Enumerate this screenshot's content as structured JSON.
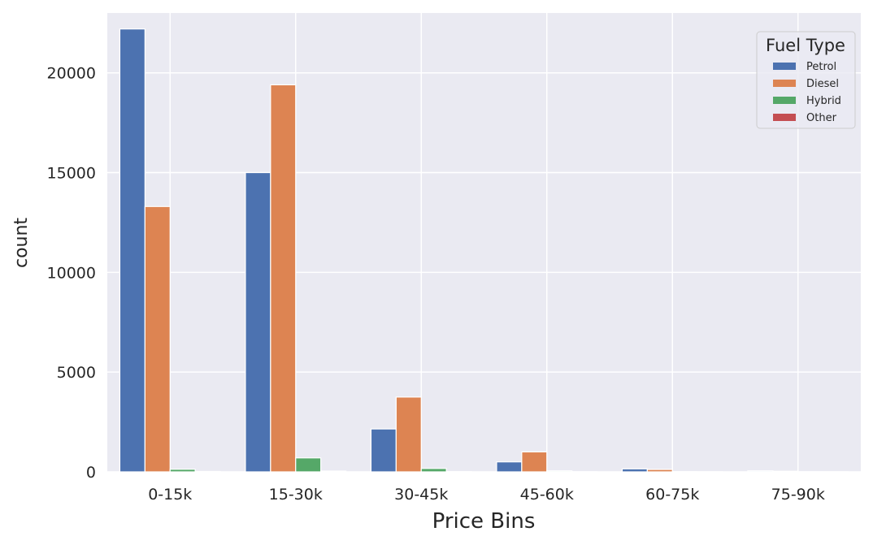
{
  "chart_data": {
    "type": "bar",
    "title": "",
    "xlabel": "Price Bins",
    "ylabel": "count",
    "categories": [
      "0-15k",
      "15-30k",
      "30-45k",
      "45-60k",
      "60-75k",
      "75-90k"
    ],
    "ylim": [
      0,
      23000
    ],
    "yticks": [
      0,
      5000,
      10000,
      15000,
      20000
    ],
    "grid": true,
    "legend": {
      "title": "Fuel Type",
      "placement": "top-right"
    },
    "series": [
      {
        "name": "Petrol",
        "color": "#4c72b0",
        "values": [
          22200,
          15000,
          2150,
          500,
          150,
          50
        ]
      },
      {
        "name": "Diesel",
        "color": "#dd8452",
        "values": [
          13300,
          19400,
          3750,
          1000,
          120,
          30
        ]
      },
      {
        "name": "Hybrid",
        "color": "#55a868",
        "values": [
          130,
          700,
          170,
          50,
          10,
          5
        ]
      },
      {
        "name": "Other",
        "color": "#c44e52",
        "values": [
          20,
          40,
          10,
          5,
          2,
          2
        ]
      }
    ]
  }
}
